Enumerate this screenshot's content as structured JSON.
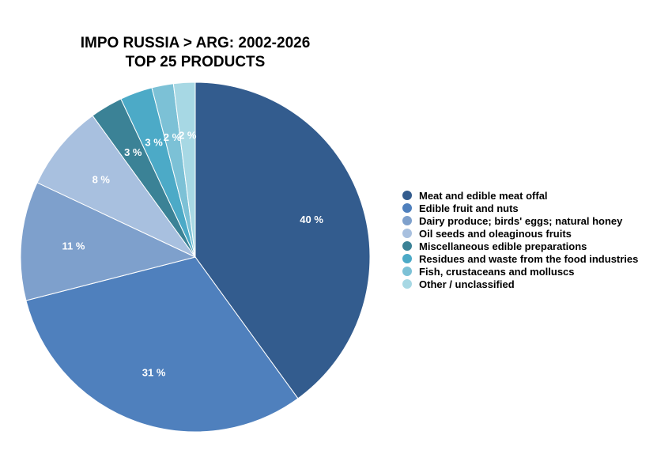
{
  "chart_data": {
    "type": "pie",
    "title_lines": [
      "IMPO RUSSIA > ARG: 2002-2026",
      "TOP 25 PRODUCTS"
    ],
    "slices": [
      {
        "name": "Meat and edible meat offal",
        "value": 40,
        "label": "40 %",
        "color": "#335c8e"
      },
      {
        "name": "Edible fruit and nuts",
        "value": 31,
        "label": "31 %",
        "color": "#4f80bd"
      },
      {
        "name": "Dairy produce; birds' eggs; natural honey",
        "value": 11,
        "label": "11 %",
        "color": "#7ea0cc"
      },
      {
        "name": "Oil seeds and oleaginous fruits",
        "value": 8,
        "label": "8 %",
        "color": "#a8c0df"
      },
      {
        "name": "Miscellaneous edible preparations",
        "value": 3,
        "label": "3 %",
        "color": "#3b8296"
      },
      {
        "name": "Residues and waste from the food industries",
        "value": 3,
        "label": "3 %",
        "color": "#4caac7"
      },
      {
        "name": "Fish, crustaceans and molluscs",
        "value": 2,
        "label": "2 %",
        "color": "#7cc1d6"
      },
      {
        "name": "Other / unclassified",
        "value": 2,
        "label": "2 %",
        "color": "#a7d8e4"
      }
    ],
    "legend_position": "right"
  }
}
